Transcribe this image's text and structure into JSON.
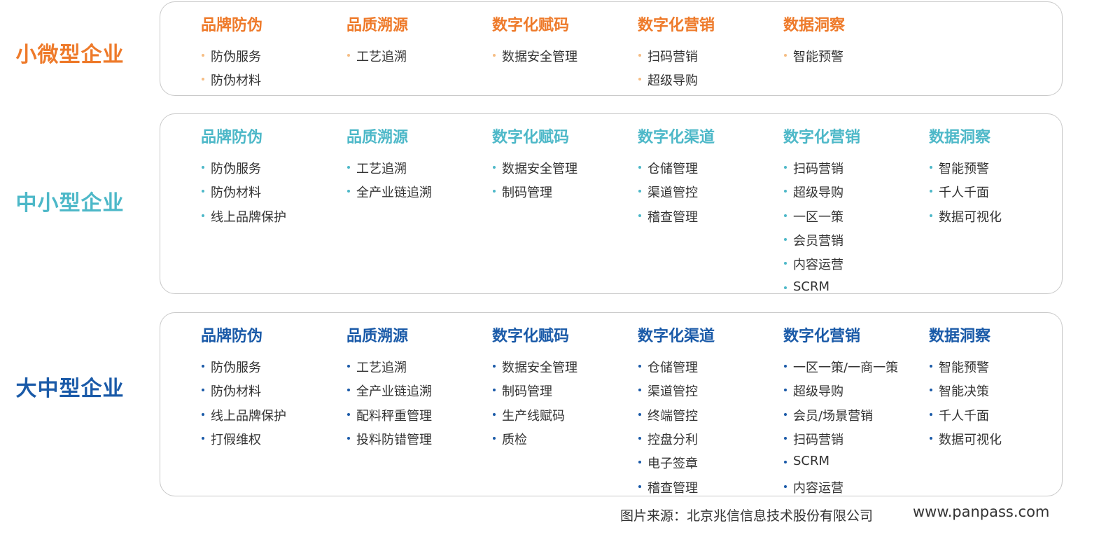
{
  "tiers": [
    {
      "label": "小微型企业",
      "columns": [
        {
          "title": "品牌防伪",
          "items": [
            "防伪服务",
            "防伪材料"
          ]
        },
        {
          "title": "品质溯源",
          "items": [
            "工艺追溯"
          ]
        },
        {
          "title": "数字化赋码",
          "items": [
            "数据安全管理"
          ]
        },
        {
          "title": "数字化营销",
          "items": [
            "扫码营销",
            "超级导购"
          ]
        },
        {
          "title": "数据洞察",
          "items": [
            "智能预警"
          ]
        }
      ]
    },
    {
      "label": "中小型企业",
      "columns": [
        {
          "title": "品牌防伪",
          "items": [
            "防伪服务",
            "防伪材料",
            "线上品牌保护"
          ]
        },
        {
          "title": "品质溯源",
          "items": [
            "工艺追溯",
            "全产业链追溯"
          ]
        },
        {
          "title": "数字化赋码",
          "items": [
            "数据安全管理",
            "制码管理"
          ]
        },
        {
          "title": "数字化渠道",
          "items": [
            "仓储管理",
            "渠道管控",
            "稽查管理"
          ]
        },
        {
          "title": "数字化营销",
          "items": [
            "扫码营销",
            "超级导购",
            "一区一策",
            "会员营销",
            "内容运营",
            "SCRM"
          ]
        },
        {
          "title": "数据洞察",
          "items": [
            "智能预警",
            "千人千面",
            "数据可视化"
          ]
        }
      ]
    },
    {
      "label": "大中型企业",
      "columns": [
        {
          "title": "品牌防伪",
          "items": [
            "防伪服务",
            "防伪材料",
            "线上品牌保护",
            "打假维权"
          ]
        },
        {
          "title": "品质溯源",
          "items": [
            "工艺追溯",
            "全产业链追溯",
            "配料秤重管理",
            "投料防错管理"
          ]
        },
        {
          "title": "数字化赋码",
          "items": [
            "数据安全管理",
            "制码管理",
            "生产线赋码",
            "质检"
          ]
        },
        {
          "title": "数字化渠道",
          "items": [
            "仓储管理",
            "渠道管控",
            "终端管控",
            "控盘分利",
            "电子签章",
            "稽查管理"
          ]
        },
        {
          "title": "数字化营销",
          "items": [
            "一区一策/一商一策",
            "超级导购",
            "会员/场景营销",
            "扫码营销",
            "SCRM",
            "内容运营"
          ]
        },
        {
          "title": "数据洞察",
          "items": [
            "智能预警",
            "智能决策",
            "千人千面",
            "数据可视化"
          ]
        }
      ]
    }
  ],
  "footer": {
    "source": "图片来源：北京兆信信息技术股份有限公司",
    "url": "www.panpass.com"
  }
}
